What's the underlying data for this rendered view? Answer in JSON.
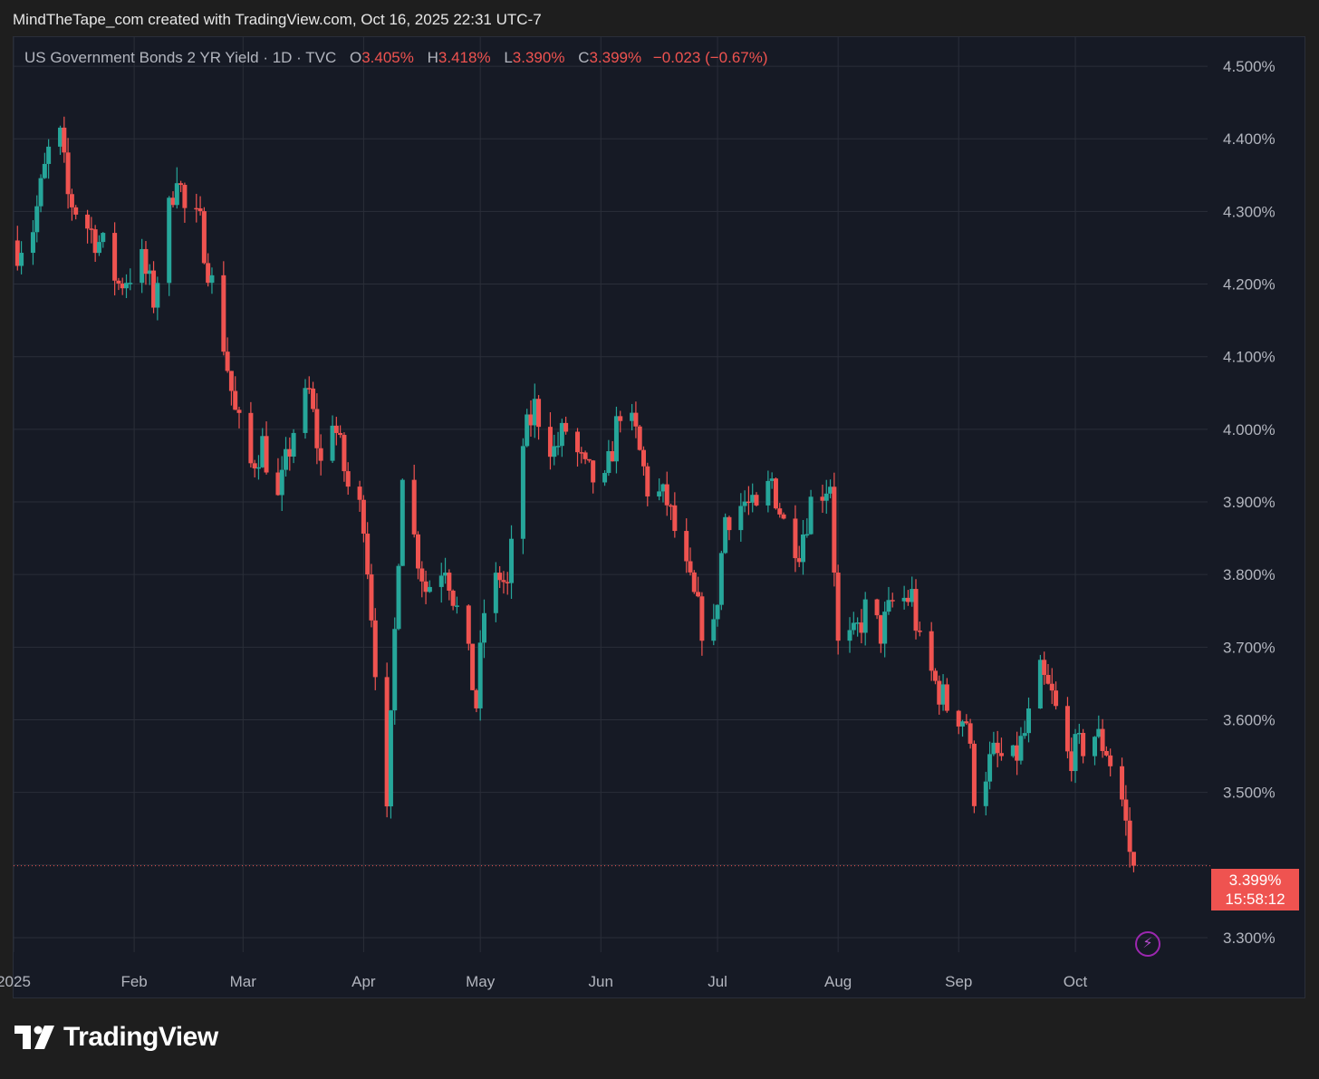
{
  "credit": "MindTheTape_com created with TradingView.com, Oct 16, 2025 22:31 UTC-7",
  "legend": {
    "symbol": "US Government Bonds 2 YR Yield · 1D · TVC",
    "open_label": "O",
    "open": "3.405%",
    "high_label": "H",
    "high": "3.418%",
    "low_label": "L",
    "low": "3.390%",
    "close_label": "C",
    "close": "3.399%",
    "change": "−0.023 (−0.67%)"
  },
  "last_price": {
    "value": "3.399%",
    "countdown": "15:58:12"
  },
  "logo": {
    "text": "TradingView",
    "icon": "tradingview-logo-icon"
  },
  "colors": {
    "up": "#26a69a",
    "down": "#ef5350",
    "background": "#161a25",
    "grid": "#2a2e39",
    "text": "#b2b5be"
  },
  "chart_data": {
    "type": "candlestick",
    "interval": "1D",
    "y_axis": {
      "ticks": [
        "4.500%",
        "4.400%",
        "4.300%",
        "4.200%",
        "4.100%",
        "4.000%",
        "3.900%",
        "3.800%",
        "3.700%",
        "3.600%",
        "3.500%",
        "3.300%"
      ],
      "tick_values": [
        4.5,
        4.4,
        4.3,
        4.2,
        4.1,
        4.0,
        3.9,
        3.8,
        3.7,
        3.6,
        3.5,
        3.3
      ],
      "range": [
        3.28,
        4.54
      ]
    },
    "x_axis": {
      "labels": [
        "2025",
        "Feb",
        "Mar",
        "Apr",
        "May",
        "Jun",
        "Jul",
        "Aug",
        "Sep",
        "Oct"
      ],
      "label_dates": [
        "2025-01-01",
        "2025-02-01",
        "2025-03-01",
        "2025-04-01",
        "2025-05-01",
        "2025-06-01",
        "2025-07-01",
        "2025-08-01",
        "2025-09-01",
        "2025-10-01"
      ],
      "range": [
        "2025-01-01",
        "2025-11-04"
      ]
    },
    "last_close": 3.399,
    "waypoints": [
      [
        "2025-01-02",
        4.25
      ],
      [
        "2025-01-06",
        4.28
      ],
      [
        "2025-01-10",
        4.38
      ],
      [
        "2025-01-13",
        4.4
      ],
      [
        "2025-01-15",
        4.32
      ],
      [
        "2025-01-20",
        4.28
      ],
      [
        "2025-01-24",
        4.25
      ],
      [
        "2025-01-28",
        4.2
      ],
      [
        "2025-02-03",
        4.23
      ],
      [
        "2025-02-06",
        4.18
      ],
      [
        "2025-02-12",
        4.36
      ],
      [
        "2025-02-14",
        4.3
      ],
      [
        "2025-02-18",
        4.28
      ],
      [
        "2025-02-21",
        4.2
      ],
      [
        "2025-02-24",
        4.12
      ],
      [
        "2025-02-27",
        4.02
      ],
      [
        "2025-03-03",
        3.95
      ],
      [
        "2025-03-06",
        3.98
      ],
      [
        "2025-03-10",
        3.9
      ],
      [
        "2025-03-14",
        4.0
      ],
      [
        "2025-03-18",
        4.05
      ],
      [
        "2025-03-21",
        3.95
      ],
      [
        "2025-03-24",
        4.02
      ],
      [
        "2025-03-28",
        3.92
      ],
      [
        "2025-04-01",
        3.88
      ],
      [
        "2025-04-03",
        3.75
      ],
      [
        "2025-04-04",
        3.68
      ],
      [
        "2025-04-07",
        3.46
      ],
      [
        "2025-04-09",
        3.72
      ],
      [
        "2025-04-11",
        3.95
      ],
      [
        "2025-04-14",
        3.85
      ],
      [
        "2025-04-17",
        3.78
      ],
      [
        "2025-04-22",
        3.82
      ],
      [
        "2025-04-25",
        3.75
      ],
      [
        "2025-04-28",
        3.68
      ],
      [
        "2025-04-30",
        3.62
      ],
      [
        "2025-05-02",
        3.75
      ],
      [
        "2025-05-06",
        3.8
      ],
      [
        "2025-05-08",
        3.78
      ],
      [
        "2025-05-12",
        3.98
      ],
      [
        "2025-05-15",
        4.03
      ],
      [
        "2025-05-20",
        3.97
      ],
      [
        "2025-05-23",
        4.0
      ],
      [
        "2025-05-28",
        3.94
      ],
      [
        "2025-06-02",
        3.92
      ],
      [
        "2025-06-06",
        4.03
      ],
      [
        "2025-06-10",
        3.99
      ],
      [
        "2025-06-13",
        3.92
      ],
      [
        "2025-06-18",
        3.9
      ],
      [
        "2025-06-23",
        3.8
      ],
      [
        "2025-06-27",
        3.73
      ],
      [
        "2025-06-30",
        3.72
      ],
      [
        "2025-07-03",
        3.88
      ],
      [
        "2025-07-08",
        3.9
      ],
      [
        "2025-07-11",
        3.88
      ],
      [
        "2025-07-15",
        3.93
      ],
      [
        "2025-07-18",
        3.87
      ],
      [
        "2025-07-22",
        3.84
      ],
      [
        "2025-07-25",
        3.9
      ],
      [
        "2025-07-30",
        3.93
      ],
      [
        "2025-08-01",
        3.7
      ],
      [
        "2025-08-05",
        3.71
      ],
      [
        "2025-08-08",
        3.75
      ],
      [
        "2025-08-12",
        3.72
      ],
      [
        "2025-08-15",
        3.76
      ],
      [
        "2025-08-20",
        3.77
      ],
      [
        "2025-08-22",
        3.7
      ],
      [
        "2025-08-26",
        3.65
      ],
      [
        "2025-08-29",
        3.62
      ],
      [
        "2025-09-03",
        3.6
      ],
      [
        "2025-09-05",
        3.5
      ],
      [
        "2025-09-10",
        3.55
      ],
      [
        "2025-09-15",
        3.54
      ],
      [
        "2025-09-18",
        3.58
      ],
      [
        "2025-09-22",
        3.66
      ],
      [
        "2025-09-25",
        3.63
      ],
      [
        "2025-09-29",
        3.55
      ],
      [
        "2025-10-02",
        3.56
      ],
      [
        "2025-10-06",
        3.58
      ],
      [
        "2025-10-09",
        3.56
      ],
      [
        "2025-10-13",
        3.49
      ],
      [
        "2025-10-15",
        3.42
      ],
      [
        "2025-10-16",
        3.399
      ]
    ]
  }
}
